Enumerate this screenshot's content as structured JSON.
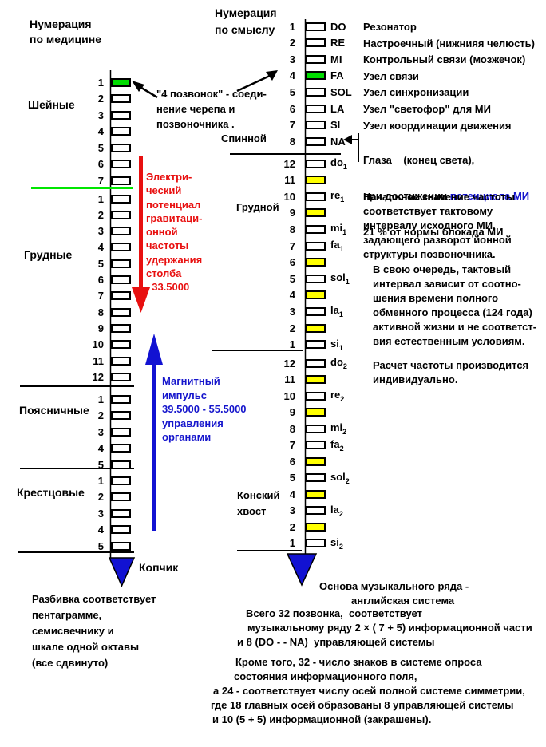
{
  "colors": {
    "highlight_green": "#00DC00",
    "highlight_yellow": "#FFFF00",
    "line_green": "#00E600",
    "arrow_red": "#E81010",
    "arrow_blue": "#1212D2",
    "text_blue": "#1515CC",
    "triangle_blue": "#1212D2"
  },
  "left_column": {
    "header_lines": [
      "Нумерация",
      "по медицине"
    ],
    "sections": [
      {
        "label": "Шейные",
        "rows": [
          {
            "num": "1",
            "fill": "green"
          },
          {
            "num": "2"
          },
          {
            "num": "3"
          },
          {
            "num": "4"
          },
          {
            "num": "5"
          },
          {
            "num": "6"
          },
          {
            "num": "7"
          }
        ]
      },
      {
        "label": "Грудные",
        "rows": [
          {
            "num": "1"
          },
          {
            "num": "2"
          },
          {
            "num": "3"
          },
          {
            "num": "4"
          },
          {
            "num": "5"
          },
          {
            "num": "6"
          },
          {
            "num": "7"
          },
          {
            "num": "8"
          },
          {
            "num": "9"
          },
          {
            "num": "10"
          },
          {
            "num": "11"
          },
          {
            "num": "12"
          }
        ]
      },
      {
        "label": "Поясничные",
        "rows": [
          {
            "num": "1"
          },
          {
            "num": "2"
          },
          {
            "num": "3"
          },
          {
            "num": "4"
          },
          {
            "num": "5"
          }
        ]
      },
      {
        "label": "Крестцовые",
        "rows": [
          {
            "num": "1"
          },
          {
            "num": "2"
          },
          {
            "num": "3"
          },
          {
            "num": "4"
          },
          {
            "num": "5"
          }
        ]
      }
    ],
    "coccyx_label": "Копчик",
    "footnote_lines": [
      "Разбивка соответствует",
      "пентаграмме,",
      "семисвечнику и",
      "шкале одной октавы",
      "(все сдвинуто)"
    ]
  },
  "annotations": {
    "c1_note_lines": [
      "\"4 позвонок\" - соеди-",
      "нение черепа и",
      "позвоночника ."
    ],
    "electric_lines": [
      "Электри-",
      "ческий",
      "потенциал",
      "гравитаци-",
      "онной",
      "частоты",
      "удержания",
      "столба",
      "  33.5000"
    ],
    "magnetic_lines": [
      "Магнитный",
      "импульс",
      "39.5000 - 55.5000",
      "управления",
      "органами"
    ]
  },
  "right_column": {
    "header_lines": [
      "Нумерация",
      "по смыслу"
    ],
    "spinal_label": "Спинной",
    "chest_label": "Грудной",
    "cauda_label_lines": [
      "Конский",
      "хвост"
    ],
    "upper_rows": [
      {
        "num": "1",
        "note": "DO",
        "desc": "Резонатор"
      },
      {
        "num": "2",
        "note": "RE",
        "desc": "Настроечный (нижнияя челюсть)"
      },
      {
        "num": "3",
        "note": "MI",
        "desc": "Контрольный связи (мозжечок)"
      },
      {
        "num": "4",
        "note": "FA",
        "fill": "green",
        "desc": "Узел связи"
      },
      {
        "num": "5",
        "note": "SOL",
        "desc": "Узел синхронизации"
      },
      {
        "num": "6",
        "note": "LA",
        "desc": "Узел \"светофор\" для МИ"
      },
      {
        "num": "7",
        "note": "SI",
        "desc": "Узел координации движения"
      },
      {
        "num": "8",
        "note": "NA"
      }
    ],
    "octave1_rows": [
      {
        "num": "12",
        "note": "do",
        "sub": "1"
      },
      {
        "num": "11",
        "fill": "yellow"
      },
      {
        "num": "10",
        "note": "re",
        "sub": "1"
      },
      {
        "num": "9",
        "fill": "yellow"
      },
      {
        "num": "8",
        "note": "mi",
        "sub": "1"
      },
      {
        "num": "7",
        "note": "fa",
        "sub": "1"
      },
      {
        "num": "6",
        "fill": "yellow"
      },
      {
        "num": "5",
        "note": "sol",
        "sub": "1"
      },
      {
        "num": "4",
        "fill": "yellow"
      },
      {
        "num": "3",
        "note": "la",
        "sub": "1"
      },
      {
        "num": "2",
        "fill": "yellow"
      },
      {
        "num": "1",
        "note": "si",
        "sub": "1"
      }
    ],
    "octave2_rows": [
      {
        "num": "12",
        "note": "do",
        "sub": "2"
      },
      {
        "num": "11",
        "fill": "yellow"
      },
      {
        "num": "10",
        "note": "re",
        "sub": "2"
      },
      {
        "num": "9",
        "fill": "yellow"
      },
      {
        "num": "8",
        "note": "mi",
        "sub": "2"
      },
      {
        "num": "7",
        "note": "fa",
        "sub": "2"
      },
      {
        "num": "6",
        "fill": "yellow"
      },
      {
        "num": "5",
        "note": "sol",
        "sub": "2"
      },
      {
        "num": "4",
        "fill": "yellow"
      },
      {
        "num": "3",
        "note": "la",
        "sub": "2"
      },
      {
        "num": "2",
        "fill": "yellow"
      },
      {
        "num": "1",
        "note": "si",
        "sub": "2"
      }
    ],
    "na_note": {
      "line1": "Глаза    (конец света),",
      "line2_black": "при достижении ",
      "line2_blue": "потенциала МИ",
      "line3": "21 % от нормы блокада МИ"
    },
    "frequency_note_lines": [
      "Начальное значение частоты",
      "соответствует тактовому",
      "интервалу исходного МИ,",
      "задающего разворот йонной",
      "структуры позвоночника."
    ],
    "interval_note_lines": [
      "В свою очередь, тактовый",
      "интервал зависит от соотно-",
      "шения времени полного",
      "обменного процесса (124 года)",
      "активной жизни и не соответст-",
      "вия естественным условиям."
    ],
    "calc_note_lines": [
      "Расчет частоты производится",
      "индивидуально."
    ]
  },
  "footer": {
    "base_lines": [
      "Основа музыкального ряда -",
      "английская система"
    ],
    "total_lines": [
      "Всего 32 позвонка,  соответствует",
      "музыкальному ряду 2 × ( 7 + 5) информационной части",
      "и 8 (DO - - NA)  управляющей системы"
    ],
    "besides_lines": [
      "Кроме того, 32 - число знаков в системе опроса",
      "состояния информационного поля,",
      "а 24 - соответствует числу осей полной системе симметрии,",
      "где 18 главных осей образованы 8 управляющей системы",
      "и 10 (5 + 5) информационной (закрашены)."
    ]
  }
}
